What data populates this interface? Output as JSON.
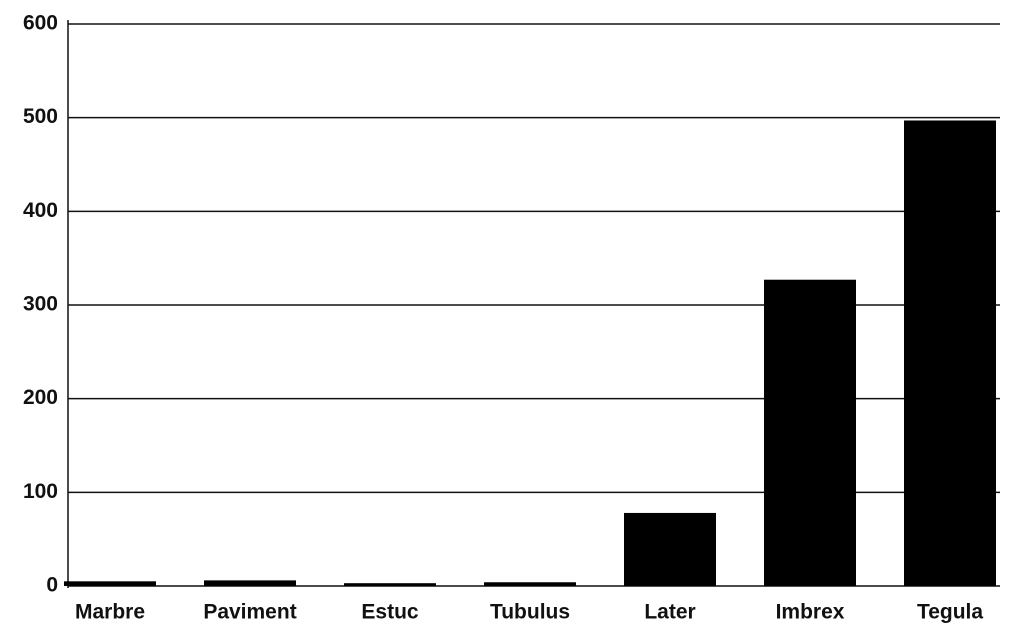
{
  "chart_data": {
    "type": "bar",
    "categories": [
      "Marbre",
      "Paviment",
      "Estuc",
      "Tubulus",
      "Later",
      "Imbrex",
      "Tegula"
    ],
    "values": [
      5,
      6,
      3,
      4,
      78,
      327,
      497
    ],
    "color": "#000000",
    "ylim": [
      0,
      600
    ],
    "yticks": [
      0,
      100,
      200,
      300,
      400,
      500,
      600
    ],
    "grid": true
  }
}
